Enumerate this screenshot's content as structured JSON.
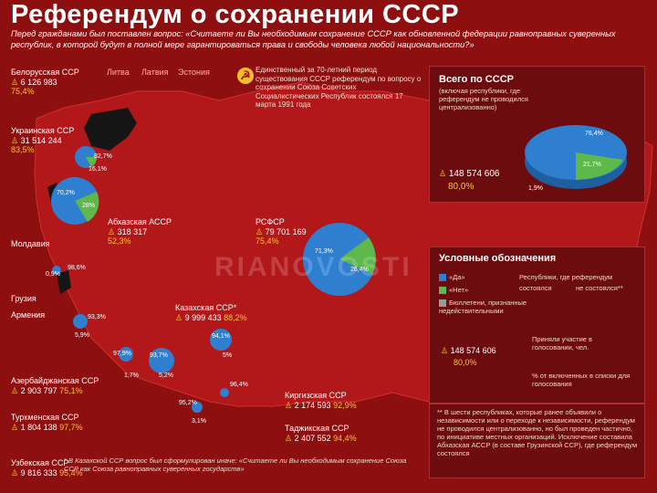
{
  "title": "Референдум о сохранении СССР",
  "question": "Перед гражданами был поставлен вопрос: «Считаете ли Вы необходимым сохранение СССР как обновленной федерации равноправных суверенных республик, в которой будут в полной мере гарантироваться права и свободы человека любой национальности?»",
  "note70": "Единственный за 70-летний период существования СССР референдум по вопросу о сохранении Союза Советских Социалистических Республик состоялся 17 марта 1991 года",
  "baltic": [
    "Литва",
    "Латвия",
    "Эстония"
  ],
  "regions": [
    {
      "id": "belarus",
      "name": "Белорусская ССР",
      "num": "6 126 983",
      "pct": "75,4%"
    },
    {
      "id": "ukraine",
      "name": "Украинская ССР",
      "num": "31 514 244",
      "pct": "83,5%"
    },
    {
      "id": "abkhaz",
      "name": "Абхазская АССР",
      "num": "318 317",
      "pct": "52,3%"
    },
    {
      "id": "rsfsr",
      "name": "РСФСР",
      "num": "79 701 169",
      "pct": "75,4%"
    },
    {
      "id": "kazakh",
      "name": "Казахская ССР*",
      "num": "9 999 433",
      "pct": "88,2%"
    },
    {
      "id": "azerb",
      "name": "Азербайджанская ССР",
      "num": "2 903 797",
      "pct": "75,1%"
    },
    {
      "id": "turkmen",
      "name": "Туркменская ССР",
      "num": "1 804 138",
      "pct": "97,7%"
    },
    {
      "id": "uzbek",
      "name": "Узбекская ССР",
      "num": "9 816 333",
      "pct": "95,4%"
    },
    {
      "id": "kirgiz",
      "name": "Киргизская ССР",
      "num": "2 174 593",
      "pct": "92,9%"
    },
    {
      "id": "tajik",
      "name": "Таджикская ССР",
      "num": "2 407 552",
      "pct": "94,4%"
    }
  ],
  "other_regions": [
    "Молдавия",
    "Грузия",
    "Армения"
  ],
  "pie_labels": {
    "ukraine_yes": "70,2%",
    "ukraine_no": "28%",
    "belarus_yes": "82,7%",
    "belarus_no": "16,1%",
    "moldova": "98,6%",
    "moldova_no": "0,9%",
    "armenia": "93,3%",
    "armenia_no": "5,9%",
    "rsfsr_yes": "71,3%",
    "rsfsr_no": "26,4%",
    "kazakh_yes": "94,1%",
    "kazakh_no": "5%",
    "turkmen_yes": "97,9%",
    "turkmen_no": "1,7%",
    "uzbek_yes": "93,7%",
    "uzbek_no": "5,2%",
    "kirgiz_yes": "96,4%",
    "tajik_yes": "95,2%",
    "tajik_no": "3,1%"
  },
  "total": {
    "title": "Всего по СССР",
    "subtitle": "(включая республики, где референдум не проводился централизованно)",
    "num": "148 574 606",
    "pct": "80,0%",
    "yes": "76,4%",
    "no": "21,7%",
    "other": "1,9%"
  },
  "legend": {
    "title": "Условные обозначения",
    "yes": "«Да»",
    "no": "«Нет»",
    "invalid": "Бюллетени, признанные недействительными",
    "rep_label": "Республики, где референдум",
    "held": "состоялся",
    "not_held": "не состоялся**",
    "example_num": "148 574 606",
    "example_pct": "80,0%",
    "participated": "Приняли участие в голосовании, чел.",
    "included": "% от включенных в списки для голосования"
  },
  "foot_right": "** В шести республиках, которые ранее объявили о независимости или о переходе к независимости, референдум не проводился централизованно, но был проведен частично, по инициативе местных организаций. Исключение составила Абхазская АССР (в составе Грузинской ССР), где референдум состоялся",
  "foot_left": "* В Казахской ССР вопрос был сформулирован иначе: «Считаете ли Вы необходимым сохранение Союза ССР как Союза равноправных суверенных государств»",
  "watermark": "RIANOVOSTI",
  "colors": {
    "yes": "#2f7fd1",
    "no": "#5fb84a",
    "bg": "#8e0f10",
    "highlight": "#f6c430"
  }
}
